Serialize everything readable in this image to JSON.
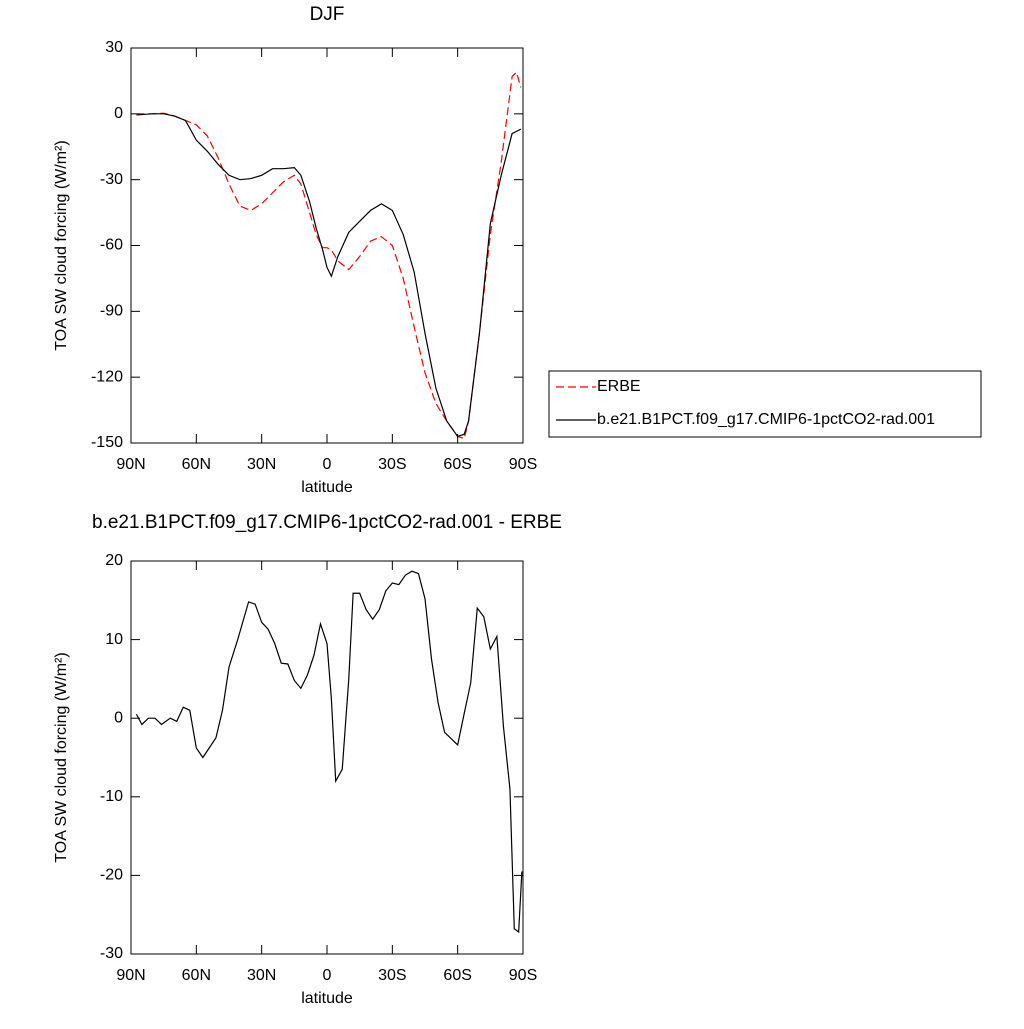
{
  "chart_data": [
    {
      "type": "line",
      "title": "DJF",
      "xlabel": "latitude",
      "ylabel": "TOA SW cloud forcing (W/m²)",
      "xlim": [
        90,
        -90
      ],
      "ylim": [
        -150,
        30
      ],
      "xticks": [
        {
          "value": 90,
          "label": "90N"
        },
        {
          "value": 60,
          "label": "60N"
        },
        {
          "value": 30,
          "label": "30N"
        },
        0,
        {
          "value": -30,
          "label": "30S"
        },
        {
          "value": -60,
          "label": "60S"
        },
        {
          "value": -90,
          "label": "90S"
        }
      ],
      "yticks": [
        30,
        0,
        -30,
        -60,
        -90,
        -120,
        -150
      ],
      "legend": "right",
      "x": [
        87.5,
        80,
        75,
        70,
        65,
        60,
        55,
        50,
        45,
        40,
        35,
        30,
        25,
        20,
        15,
        12,
        8,
        5,
        2,
        0,
        -2,
        -5,
        -10,
        -15,
        -20,
        -25,
        -30,
        -35,
        -40,
        -45,
        -50,
        -55,
        -60,
        -63,
        -65,
        -70,
        -75,
        -80,
        -85,
        -87,
        -89
      ],
      "series": [
        {
          "name": "ERBE",
          "color": "#ff0000",
          "dashed": true,
          "values": [
            0,
            0,
            0.3,
            -1,
            -3,
            -5,
            -10,
            -20,
            -32,
            -42,
            -44,
            -41,
            -36,
            -31,
            -28,
            -32,
            -45,
            -55,
            -61,
            -61,
            -62,
            -67,
            -71,
            -65,
            -58,
            -56,
            -60,
            -75,
            -97,
            -118,
            -132,
            -140,
            -147,
            -148,
            -140,
            -100,
            -55,
            -22,
            17,
            19,
            12
          ]
        },
        {
          "name": "b.e21.B1PCT.f09_g17.CMIP6-1pctCO2-rad.001",
          "color": "#000000",
          "dashed": false,
          "values": [
            -0.5,
            0,
            0,
            -1,
            -3,
            -12,
            -17,
            -23,
            -28,
            -30,
            -29.5,
            -28,
            -25,
            -25,
            -24.5,
            -28,
            -40,
            -52,
            -62,
            -70,
            -74,
            -65,
            -54,
            -49,
            -44,
            -41,
            -44,
            -55,
            -72,
            -100,
            -125,
            -140,
            -147,
            -146,
            -140,
            -100,
            -50,
            -28,
            -9,
            -8,
            -7
          ]
        }
      ]
    },
    {
      "type": "line",
      "title": "b.e21.B1PCT.f09_g17.CMIP6-1pctCO2-rad.001 - ERBE",
      "xlabel": "latitude",
      "ylabel": "TOA SW cloud forcing (W/m²)",
      "xlim": [
        90,
        -90
      ],
      "ylim": [
        -30,
        20
      ],
      "xticks": [
        {
          "value": 90,
          "label": "90N"
        },
        {
          "value": 60,
          "label": "60N"
        },
        {
          "value": 30,
          "label": "30N"
        },
        0,
        {
          "value": -30,
          "label": "30S"
        },
        {
          "value": -60,
          "label": "60S"
        },
        {
          "value": -90,
          "label": "90S"
        }
      ],
      "yticks": [
        20,
        10,
        0,
        -10,
        -20,
        -30
      ],
      "x": [
        87.5,
        85,
        82,
        79,
        76,
        72,
        69,
        66,
        63,
        60,
        57,
        51,
        48,
        45,
        41,
        36,
        33,
        30,
        27,
        24,
        21,
        18,
        15,
        12,
        9,
        6,
        3,
        0,
        -2,
        -4,
        -7,
        -10,
        -12,
        -15,
        -18,
        -21,
        -24,
        -27,
        -30,
        -33,
        -36,
        -39,
        -42,
        -45,
        -48,
        -51,
        -54,
        -60,
        -63,
        -66,
        -69,
        -72,
        -75,
        -78,
        -81,
        -84,
        -86,
        -88,
        -89.5
      ],
      "series": [
        {
          "color": "#000000",
          "dashed": false,
          "values": [
            0.5,
            -0.8,
            0,
            0,
            -0.8,
            0,
            -0.4,
            1.4,
            1,
            -3.8,
            -5,
            -2.5,
            1,
            6.5,
            10,
            14.8,
            14.5,
            12.2,
            11.3,
            9.5,
            7,
            6.9,
            4.8,
            3.8,
            5.5,
            8,
            12,
            9.5,
            2.5,
            -8,
            -6.5,
            5,
            15.9,
            15.9,
            13.8,
            12.6,
            13.8,
            16.2,
            17.2,
            17,
            18.2,
            18.7,
            18.4,
            15.2,
            7.5,
            2,
            -1.8,
            -3.4,
            0.6,
            4.5,
            14,
            12.9,
            8.8,
            10.4,
            -1,
            -9,
            -26.8,
            -27.2,
            -19.5
          ]
        }
      ]
    }
  ]
}
